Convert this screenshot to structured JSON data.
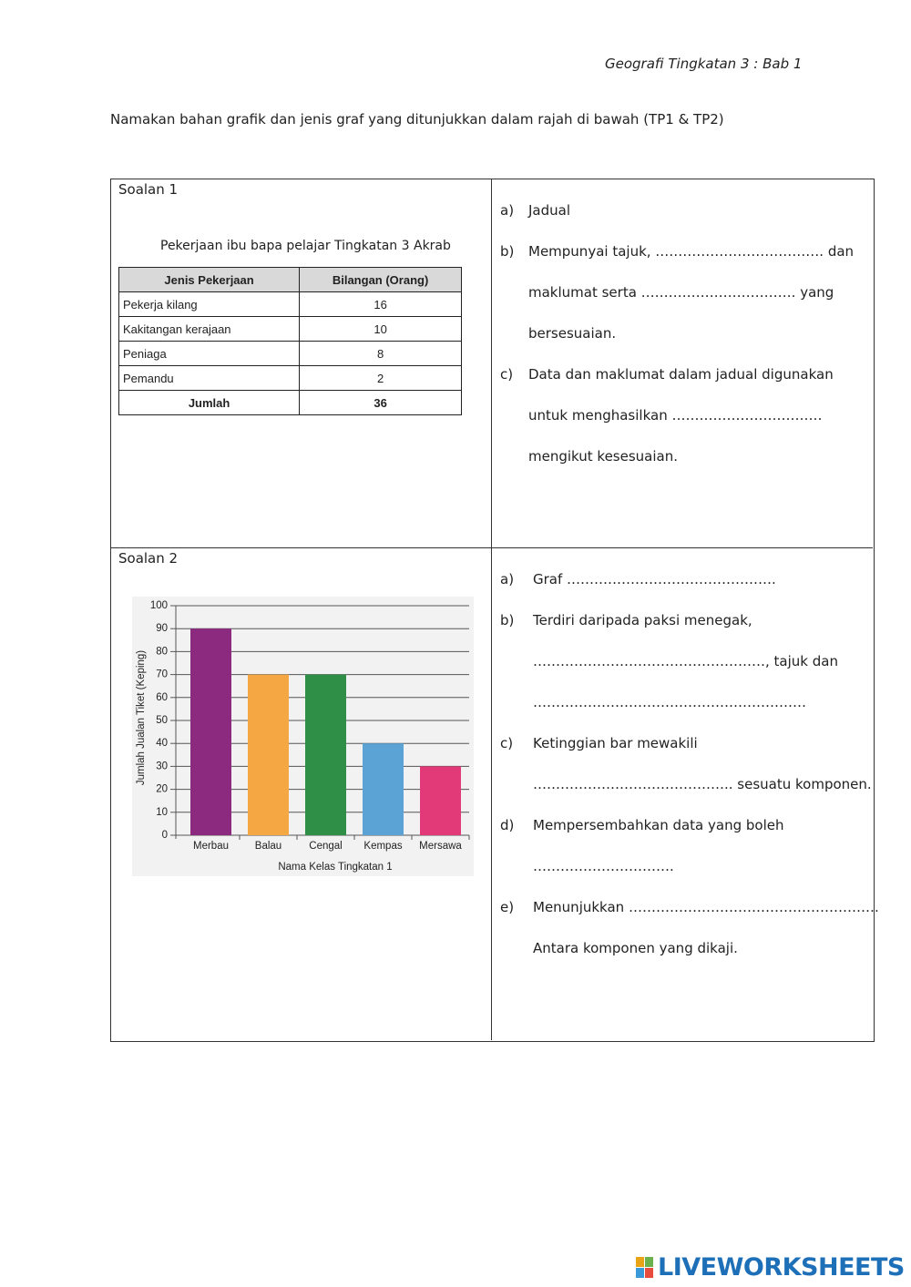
{
  "header": {
    "subject": "Geografi Tingkatan 3 : Bab 1",
    "instruction": "Namakan bahan grafik dan jenis graf yang ditunjukkan dalam rajah di bawah (TP1 & TP2)"
  },
  "questions": [
    {
      "label": "Soalan 1",
      "table": {
        "caption": "Pekerjaan ibu bapa pelajar Tingkatan 3 Akrab",
        "columns": [
          "Jenis Pekerjaan",
          "Bilangan (Orang)"
        ],
        "rows": [
          [
            "Pekerja kilang",
            16
          ],
          [
            "Kakitangan kerajaan",
            10
          ],
          [
            "Peniaga",
            8
          ],
          [
            "Pemandu",
            2
          ]
        ],
        "total": [
          "Jumlah",
          36
        ]
      },
      "answers": [
        {
          "marker": "a)",
          "lines": [
            "Jadual"
          ]
        },
        {
          "marker": "b)",
          "lines": [
            "Mempunyai tajuk, ………………………………. dan",
            "maklumat serta  ……………………………. yang",
            "bersesuaian."
          ]
        },
        {
          "marker": "c)",
          "lines": [
            "Data dan maklumat dalam jadual digunakan",
            "untuk menghasilkan ……………………………",
            "mengikut kesesuaian."
          ]
        }
      ]
    },
    {
      "label": "Soalan 2",
      "chart_data": {
        "type": "bar",
        "ylabel": "Jumlah Jualan Tiket (Keping)",
        "xlabel": "Nama Kelas Tingkatan 1",
        "categories": [
          "Merbau",
          "Balau",
          "Cengal",
          "Kempas",
          "Mersawa"
        ],
        "values": [
          90,
          70,
          70,
          40,
          30
        ],
        "colors": [
          "#8b2a7e",
          "#f4a742",
          "#2f8f46",
          "#5aa3d4",
          "#e23a78"
        ],
        "ylim": [
          0,
          100
        ],
        "yticks": [
          0,
          10,
          20,
          30,
          40,
          50,
          60,
          70,
          80,
          90,
          100
        ],
        "grid": true
      },
      "answers": [
        {
          "marker": "a)",
          "lines": [
            "Graf  ………………………………………."
          ]
        },
        {
          "marker": "b)",
          "lines": [
            "Terdiri daripada paksi menegak,",
            "……………………………………………, tajuk dan",
            "……………………………………………………"
          ]
        },
        {
          "marker": "c)",
          "lines": [
            "Ketinggian bar mewakili",
            "…………………………………….. sesuatu komponen."
          ]
        },
        {
          "marker": "d)",
          "lines": [
            "Mempersembahkan data yang boleh",
            "…………………………."
          ]
        },
        {
          "marker": "e)",
          "lines": [
            "Menunjukkan ……………………………………………….",
            "Antara komponen yang dikaji."
          ]
        }
      ]
    }
  ],
  "footer": {
    "brand": "LIVEWORKSHEETS"
  }
}
